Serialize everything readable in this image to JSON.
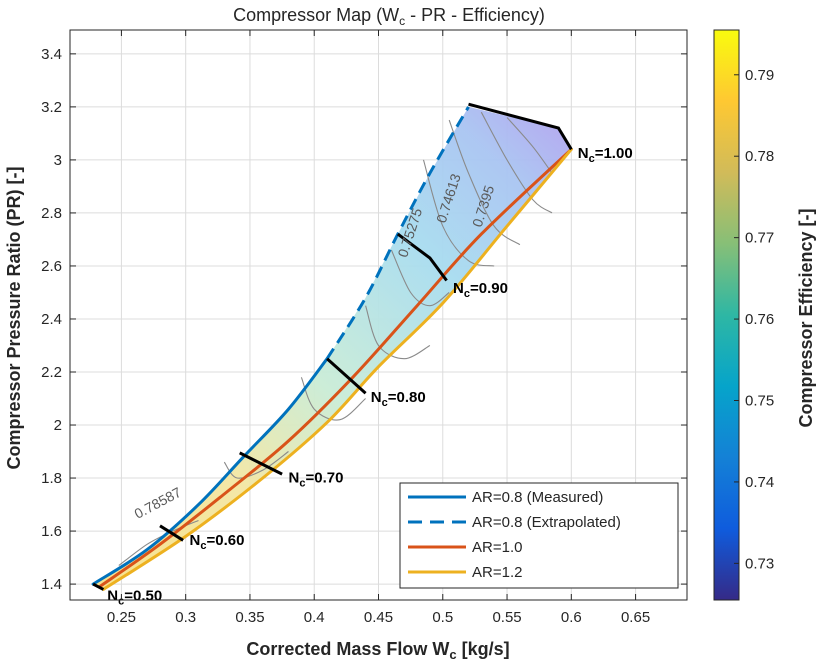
{
  "chart_data": {
    "type": "line",
    "title": "Compressor Map (W",
    "title_sub": "c",
    "title_rest": " - PR - Efficiency)",
    "xlabel": "Corrected Mass Flow W",
    "xlabel_sub": "c",
    "xlabel_rest": " [kg/s]",
    "ylabel": "Compressor Pressure Ratio (PR) [-]",
    "colorbar_label": "Compressor Efficiency [-]",
    "xlim": [
      0.21,
      0.69
    ],
    "ylim": [
      1.34,
      3.49
    ],
    "xticks": [
      "0.25",
      "0.3",
      "0.35",
      "0.4",
      "0.45",
      "0.5",
      "0.55",
      "0.6",
      "0.65"
    ],
    "yticks": [
      "1.4",
      "1.6",
      "1.8",
      "2",
      "2.2",
      "2.4",
      "2.6",
      "2.8",
      "3",
      "3.2",
      "3.4"
    ],
    "colorbar_lim": [
      0.7255,
      0.7955
    ],
    "colorbar_ticks": [
      "0.73",
      "0.74",
      "0.75",
      "0.76",
      "0.77",
      "0.78",
      "0.79"
    ],
    "grid": true,
    "legend_position": "bottom-right",
    "series": [
      {
        "name": "AR=0.8 (Measured)",
        "style": "solid",
        "color": "#0072BD",
        "x": [
          0.228,
          0.27,
          0.31,
          0.345,
          0.38,
          0.41
        ],
        "y": [
          1.4,
          1.53,
          1.7,
          1.88,
          2.06,
          2.25
        ]
      },
      {
        "name": "AR=0.8 (Extrapolated)",
        "style": "dashed",
        "color": "#0072BD",
        "x": [
          0.41,
          0.44,
          0.465,
          0.49,
          0.52
        ],
        "y": [
          2.25,
          2.48,
          2.72,
          2.95,
          3.2
        ]
      },
      {
        "name": "AR=1.0",
        "style": "solid",
        "color": "#D95319",
        "x": [
          0.233,
          0.28,
          0.33,
          0.38,
          0.43,
          0.48,
          0.53,
          0.6
        ],
        "y": [
          1.39,
          1.55,
          1.74,
          1.94,
          2.18,
          2.45,
          2.72,
          3.04
        ]
      },
      {
        "name": "AR=1.2",
        "style": "solid",
        "color": "#EDB120",
        "x": [
          0.236,
          0.3,
          0.36,
          0.41,
          0.45,
          0.5,
          0.55,
          0.6
        ],
        "y": [
          1.38,
          1.58,
          1.8,
          2.01,
          2.22,
          2.46,
          2.75,
          3.04
        ]
      }
    ],
    "speed_lines": [
      {
        "label": "N",
        "label_sub": "c",
        "label_rest": "=0.50",
        "x": [
          0.228,
          0.236
        ],
        "y": [
          1.4,
          1.38
        ],
        "label_x": 0.239,
        "label_y": 1.375
      },
      {
        "label": "N",
        "label_sub": "c",
        "label_rest": "=0.60",
        "x": [
          0.28,
          0.298
        ],
        "y": [
          1.62,
          1.565
        ],
        "label_x": 0.303,
        "label_y": 1.585
      },
      {
        "label": "N",
        "label_sub": "c",
        "label_rest": "=0.70",
        "x": [
          0.342,
          0.375
        ],
        "y": [
          1.895,
          1.815
        ],
        "label_x": 0.38,
        "label_y": 1.82
      },
      {
        "label": "N",
        "label_sub": "c",
        "label_rest": "=0.80",
        "x": [
          0.41,
          0.44
        ],
        "y": [
          2.25,
          2.12
        ],
        "label_x": 0.444,
        "label_y": 2.125
      },
      {
        "label": "N",
        "label_sub": "c",
        "label_rest": "=0.90",
        "x": [
          0.465,
          0.49,
          0.503
        ],
        "y": [
          2.72,
          2.63,
          2.545
        ],
        "label_x": 0.508,
        "label_y": 2.535
      },
      {
        "label": "N",
        "label_sub": "c",
        "label_rest": "=1.00",
        "x": [
          0.52,
          0.59,
          0.6
        ],
        "y": [
          3.21,
          3.12,
          3.04
        ],
        "label_x": 0.605,
        "label_y": 3.045
      }
    ],
    "contour_labels": [
      {
        "text": "0.78587",
        "x": 0.28,
        "y": 1.69,
        "rotate": -28
      },
      {
        "text": "0.75275",
        "x": 0.478,
        "y": 2.72,
        "rotate": -72
      },
      {
        "text": "0.74613",
        "x": 0.508,
        "y": 2.85,
        "rotate": -72
      },
      {
        "text": "0.7395",
        "x": 0.535,
        "y": 2.82,
        "rotate": -72
      }
    ]
  },
  "colors": {
    "axis": "#262626",
    "grid": "#dcdcdc",
    "speed_line": "#000000"
  }
}
